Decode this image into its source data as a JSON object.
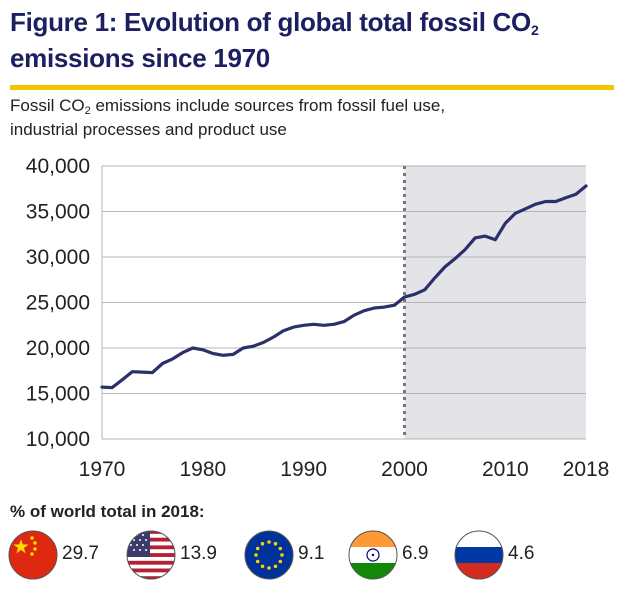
{
  "title": {
    "line1_main": "Figure 1: Evolution of global total fossil CO",
    "line1_sub": "2",
    "line2": "emissions since 1970"
  },
  "subtitle": {
    "line1_pre": "Fossil CO",
    "line1_sub": "2",
    "line1_post": " emissions include sources from fossil fuel use,",
    "line2": "industrial processes and product use"
  },
  "chart_data": {
    "type": "line",
    "ylim": [
      10000,
      40000
    ],
    "xlim": [
      1970,
      2018
    ],
    "y_ticks": [
      "10,000",
      "15,000",
      "20,000",
      "25,000",
      "30,000",
      "35,000",
      "40,000"
    ],
    "y_tick_values": [
      10000,
      15000,
      20000,
      25000,
      30000,
      35000,
      40000
    ],
    "x_ticks": [
      "1970",
      "1980",
      "1990",
      "2000",
      "2010",
      "2018"
    ],
    "x_tick_values": [
      1970,
      1980,
      1990,
      2000,
      2010,
      2018
    ],
    "grid": true,
    "shaded_from": 2000,
    "line_color": "#2b2f6b",
    "shade_color": "#e3e3e8",
    "series": [
      {
        "x": [
          1970,
          1971,
          1972,
          1973,
          1974,
          1975,
          1976,
          1977,
          1978,
          1979,
          1980,
          1981,
          1982,
          1983,
          1984,
          1985,
          1986,
          1987,
          1988,
          1989,
          1990,
          1991,
          1992,
          1993,
          1994,
          1995,
          1996,
          1997,
          1998,
          1999,
          2000,
          2001,
          2002,
          2003,
          2004,
          2005,
          2006,
          2007,
          2008,
          2009,
          2010,
          2011,
          2012,
          2013,
          2014,
          2015,
          2016,
          2017,
          2018
        ],
        "values": [
          15700,
          15650,
          16500,
          17400,
          17350,
          17300,
          18300,
          18800,
          19500,
          20000,
          19800,
          19400,
          19200,
          19300,
          20000,
          20200,
          20600,
          21200,
          21900,
          22300,
          22500,
          22600,
          22500,
          22600,
          22900,
          23600,
          24100,
          24400,
          24500,
          24700,
          25600,
          25900,
          26400,
          27700,
          28900,
          29800,
          30800,
          32100,
          32300,
          31900,
          33700,
          34800,
          35300,
          35800,
          36100,
          36100,
          36500,
          36900,
          37800
        ]
      }
    ]
  },
  "shares": {
    "label": "% of world total in 2018:",
    "items": [
      {
        "flag": "china-flag-icon",
        "value": "29.7"
      },
      {
        "flag": "usa-flag-icon",
        "value": "13.9"
      },
      {
        "flag": "eu-flag-icon",
        "value": "9.1"
      },
      {
        "flag": "india-flag-icon",
        "value": "6.9"
      },
      {
        "flag": "russia-flag-icon",
        "value": "4.6"
      }
    ]
  }
}
